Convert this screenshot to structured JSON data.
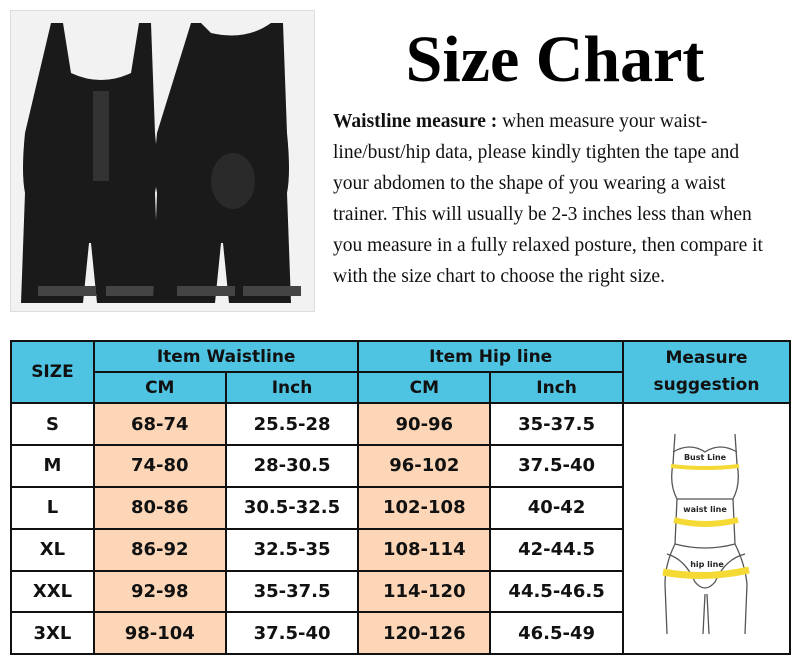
{
  "title": "Size Chart",
  "description": {
    "lead": "Waistline measure :",
    "text": " when measure your waist-line/bust/hip data, please kindly tighten the tape and your abdomen to the shape of you wearing a waist trainer. This will usually be 2-3 inches less than when you measure in a fully relaxed posture, then compare it with the size chart to choose the right size."
  },
  "table": {
    "size_header": "SIZE",
    "waist_header": "Item Waistline",
    "hip_header": "Item Hip line",
    "measure_header": "Measure suggestion",
    "cm": "CM",
    "inch": "Inch",
    "rows": [
      [
        "S",
        "68-74",
        "25.5-28",
        "90-96",
        "35-37.5"
      ],
      [
        "M",
        "74-80",
        "28-30.5",
        "96-102",
        "37.5-40"
      ],
      [
        "L",
        "80-86",
        "30.5-32.5",
        "102-108",
        "40-42"
      ],
      [
        "XL",
        "86-92",
        "32.5-35",
        "108-114",
        "42-44.5"
      ],
      [
        "XXL",
        "92-98",
        "35-37.5",
        "114-120",
        "44.5-46.5"
      ],
      [
        "3XL",
        "98-104",
        "37.5-40",
        "120-126",
        "46.5-49"
      ]
    ],
    "figure_labels": {
      "bust": "Bust Line",
      "waist": "waist line",
      "hip": "hip line"
    }
  },
  "colors": {
    "header": "#4ec4e2",
    "cm_cell": "#fcd6b6",
    "measure_band": "#f5d935"
  }
}
